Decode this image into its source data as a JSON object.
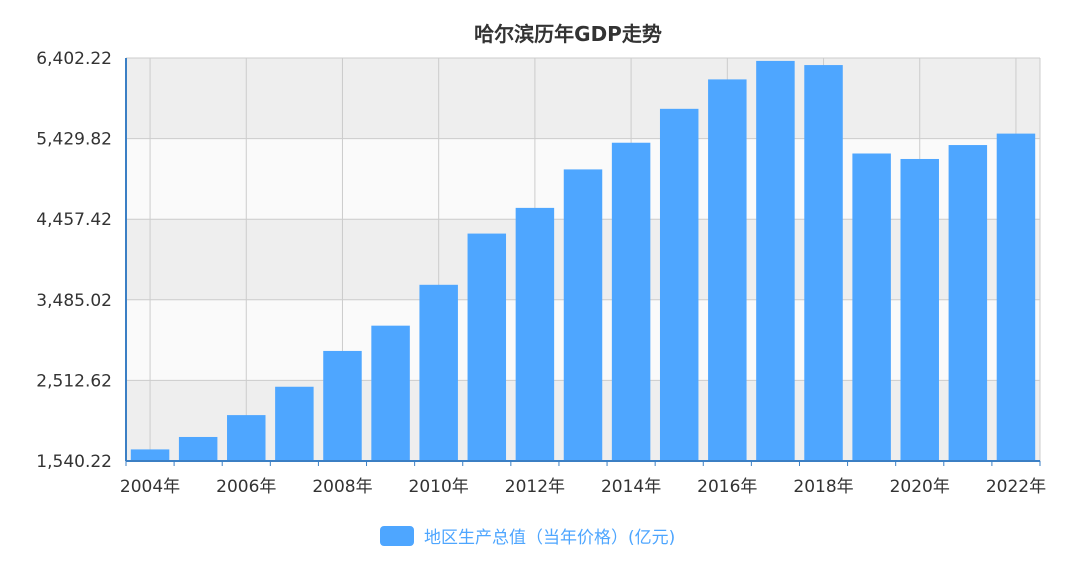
{
  "chart_data": {
    "type": "bar",
    "title": "哈尔滨历年GDP走势",
    "categories": [
      "2004年",
      "2005年",
      "2006年",
      "2007年",
      "2008年",
      "2009年",
      "2010年",
      "2011年",
      "2012年",
      "2013年",
      "2014年",
      "2015年",
      "2016年",
      "2017年",
      "2018年",
      "2019年",
      "2020年",
      "2021年",
      "2022年"
    ],
    "x_tick_labels": [
      "2004年",
      "2006年",
      "2008年",
      "2010年",
      "2012年",
      "2014年",
      "2016年",
      "2018年",
      "2020年",
      "2022年"
    ],
    "series": [
      {
        "name": "地区生产总值（当年价格）(亿元)",
        "values": [
          1680,
          1830,
          2094,
          2436,
          2868,
          3173,
          3666,
          4284,
          4594,
          5058,
          5380,
          5789,
          6144,
          6367,
          6317,
          5250,
          5184,
          5352,
          5490
        ]
      }
    ],
    "y_ticks": [
      "1,540.22",
      "2,512.62",
      "3,485.02",
      "4,457.42",
      "5,429.82",
      "6,402.22"
    ],
    "ylim": [
      1540.22,
      6402.22
    ],
    "xlabel": "",
    "ylabel": "",
    "grid": true,
    "legend_position": "bottom-center",
    "colors": {
      "bar": "#4ea6ff",
      "plot_band": "#eeeeee",
      "grid": "#cccccc",
      "axis": "#3b7fc4"
    }
  }
}
